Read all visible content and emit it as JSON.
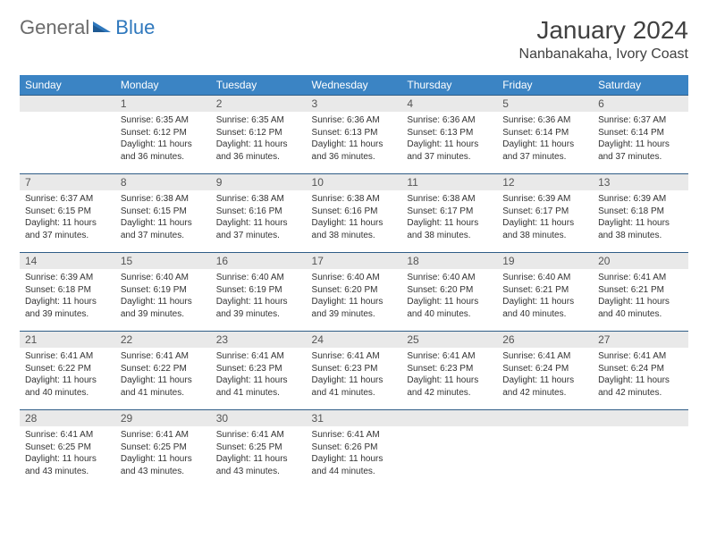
{
  "brand": {
    "word1": "General",
    "word2": "Blue"
  },
  "title": "January 2024",
  "location": "Nanbanakaha, Ivory Coast",
  "colors": {
    "header_bg": "#3b84c4",
    "header_text": "#ffffff",
    "daynum_bg": "#e9e9e9",
    "border": "#2f5d87",
    "brand_gray": "#6b6b6b",
    "brand_blue": "#2f78bd"
  },
  "weekdays": [
    "Sunday",
    "Monday",
    "Tuesday",
    "Wednesday",
    "Thursday",
    "Friday",
    "Saturday"
  ],
  "labels": {
    "sunrise": "Sunrise:",
    "sunset": "Sunset:",
    "daylight": "Daylight:"
  },
  "first_weekday_index": 1,
  "days_in_month": 31,
  "days": {
    "1": {
      "sunrise": "6:35 AM",
      "sunset": "6:12 PM",
      "daylight": "11 hours and 36 minutes."
    },
    "2": {
      "sunrise": "6:35 AM",
      "sunset": "6:12 PM",
      "daylight": "11 hours and 36 minutes."
    },
    "3": {
      "sunrise": "6:36 AM",
      "sunset": "6:13 PM",
      "daylight": "11 hours and 36 minutes."
    },
    "4": {
      "sunrise": "6:36 AM",
      "sunset": "6:13 PM",
      "daylight": "11 hours and 37 minutes."
    },
    "5": {
      "sunrise": "6:36 AM",
      "sunset": "6:14 PM",
      "daylight": "11 hours and 37 minutes."
    },
    "6": {
      "sunrise": "6:37 AM",
      "sunset": "6:14 PM",
      "daylight": "11 hours and 37 minutes."
    },
    "7": {
      "sunrise": "6:37 AM",
      "sunset": "6:15 PM",
      "daylight": "11 hours and 37 minutes."
    },
    "8": {
      "sunrise": "6:38 AM",
      "sunset": "6:15 PM",
      "daylight": "11 hours and 37 minutes."
    },
    "9": {
      "sunrise": "6:38 AM",
      "sunset": "6:16 PM",
      "daylight": "11 hours and 37 minutes."
    },
    "10": {
      "sunrise": "6:38 AM",
      "sunset": "6:16 PM",
      "daylight": "11 hours and 38 minutes."
    },
    "11": {
      "sunrise": "6:38 AM",
      "sunset": "6:17 PM",
      "daylight": "11 hours and 38 minutes."
    },
    "12": {
      "sunrise": "6:39 AM",
      "sunset": "6:17 PM",
      "daylight": "11 hours and 38 minutes."
    },
    "13": {
      "sunrise": "6:39 AM",
      "sunset": "6:18 PM",
      "daylight": "11 hours and 38 minutes."
    },
    "14": {
      "sunrise": "6:39 AM",
      "sunset": "6:18 PM",
      "daylight": "11 hours and 39 minutes."
    },
    "15": {
      "sunrise": "6:40 AM",
      "sunset": "6:19 PM",
      "daylight": "11 hours and 39 minutes."
    },
    "16": {
      "sunrise": "6:40 AM",
      "sunset": "6:19 PM",
      "daylight": "11 hours and 39 minutes."
    },
    "17": {
      "sunrise": "6:40 AM",
      "sunset": "6:20 PM",
      "daylight": "11 hours and 39 minutes."
    },
    "18": {
      "sunrise": "6:40 AM",
      "sunset": "6:20 PM",
      "daylight": "11 hours and 40 minutes."
    },
    "19": {
      "sunrise": "6:40 AM",
      "sunset": "6:21 PM",
      "daylight": "11 hours and 40 minutes."
    },
    "20": {
      "sunrise": "6:41 AM",
      "sunset": "6:21 PM",
      "daylight": "11 hours and 40 minutes."
    },
    "21": {
      "sunrise": "6:41 AM",
      "sunset": "6:22 PM",
      "daylight": "11 hours and 40 minutes."
    },
    "22": {
      "sunrise": "6:41 AM",
      "sunset": "6:22 PM",
      "daylight": "11 hours and 41 minutes."
    },
    "23": {
      "sunrise": "6:41 AM",
      "sunset": "6:23 PM",
      "daylight": "11 hours and 41 minutes."
    },
    "24": {
      "sunrise": "6:41 AM",
      "sunset": "6:23 PM",
      "daylight": "11 hours and 41 minutes."
    },
    "25": {
      "sunrise": "6:41 AM",
      "sunset": "6:23 PM",
      "daylight": "11 hours and 42 minutes."
    },
    "26": {
      "sunrise": "6:41 AM",
      "sunset": "6:24 PM",
      "daylight": "11 hours and 42 minutes."
    },
    "27": {
      "sunrise": "6:41 AM",
      "sunset": "6:24 PM",
      "daylight": "11 hours and 42 minutes."
    },
    "28": {
      "sunrise": "6:41 AM",
      "sunset": "6:25 PM",
      "daylight": "11 hours and 43 minutes."
    },
    "29": {
      "sunrise": "6:41 AM",
      "sunset": "6:25 PM",
      "daylight": "11 hours and 43 minutes."
    },
    "30": {
      "sunrise": "6:41 AM",
      "sunset": "6:25 PM",
      "daylight": "11 hours and 43 minutes."
    },
    "31": {
      "sunrise": "6:41 AM",
      "sunset": "6:26 PM",
      "daylight": "11 hours and 44 minutes."
    }
  }
}
